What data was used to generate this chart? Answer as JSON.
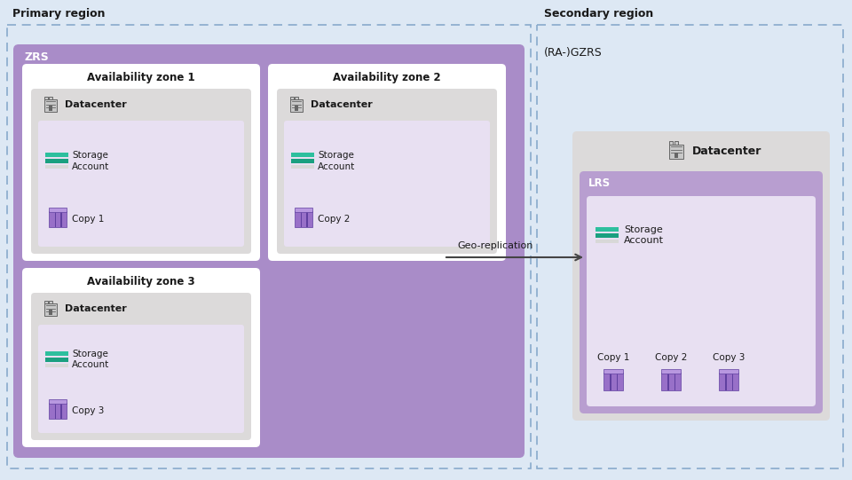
{
  "title_primary": "Primary region",
  "title_secondary": "Secondary region",
  "label_zrs": "ZRS",
  "label_ragzrs": "(RA-)GZRS",
  "label_lrs": "LRS",
  "label_datacenter": "Datacenter",
  "label_storage_account": "Storage\nAccount",
  "label_geo_replication": "Geo-replication",
  "availability_zones": [
    "Availability zone 1",
    "Availability zone 2",
    "Availability zone 3"
  ],
  "copy_labels_primary": [
    "Copy 1",
    "Copy 2",
    "Copy 3"
  ],
  "copy_labels_secondary": [
    "Copy 1",
    "Copy 2",
    "Copy 3"
  ],
  "bg_outer": "#dde8f4",
  "bg_zrs": "#a98cc8",
  "bg_avzone_white": "#ffffff",
  "bg_datacenter_gray": "#dcdada",
  "bg_lrs_purple": "#b89ed0",
  "bg_storage_light": "#e8e0f2",
  "bg_secondary_dc_gray": "#dcdada",
  "color_teal1": "#2dbf9e",
  "color_teal2": "#1aa080",
  "color_teal3": "#d8d8d8",
  "color_purple_body": "#9870c8",
  "color_purple_cap": "#b898e0",
  "color_purple_div": "#6040a0",
  "text_color": "#1a1a1a",
  "arrow_color": "#444444",
  "dashed_border_color": "#88aacc",
  "zrs_label_color": "#333333",
  "dc_icon_body": "#c8c8c8",
  "dc_icon_outline": "#666666"
}
